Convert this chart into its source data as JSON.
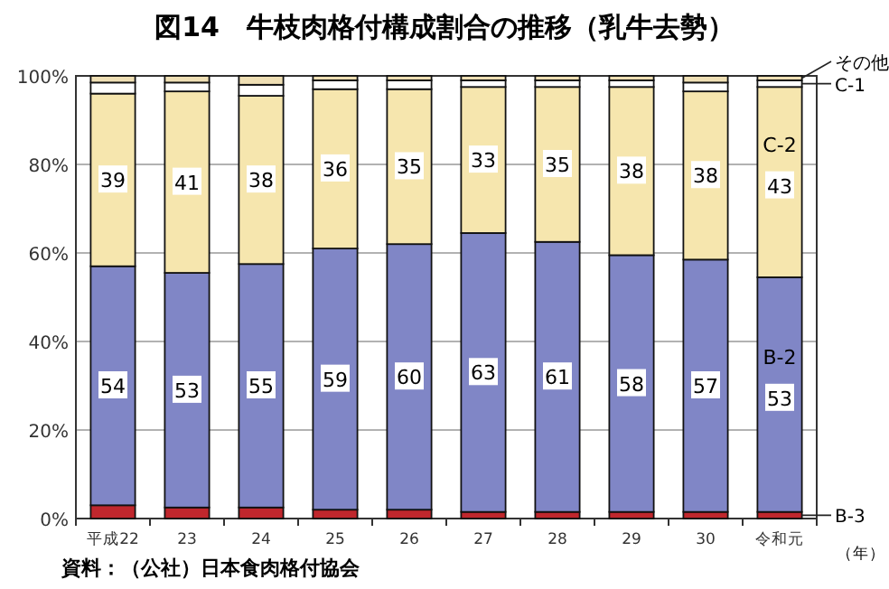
{
  "chart_data": {
    "type": "bar",
    "stacked": true,
    "title": "図14　牛枝肉格付構成割合の推移（乳牛去勢）",
    "xlabel": "（年）",
    "annotations": [
      "資料：（公社）日本食肉格付協会"
    ],
    "categories": [
      "平成22",
      "23",
      "24",
      "25",
      "26",
      "27",
      "28",
      "29",
      "30",
      "令和元"
    ],
    "series": [
      {
        "name": "B-3",
        "color": "#c0272d",
        "values": [
          3,
          2.5,
          2.5,
          2,
          2,
          1.5,
          1.5,
          1.5,
          1.5,
          1.5
        ]
      },
      {
        "name": "B-2",
        "color": "#8086c6",
        "values": [
          54,
          53,
          55,
          59,
          60,
          63,
          61,
          58,
          57,
          53
        ],
        "value_labels": [
          "54",
          "53",
          "55",
          "59",
          "60",
          "63",
          "61",
          "58",
          "57",
          "53"
        ]
      },
      {
        "name": "C-2",
        "color": "#f6e6ae",
        "values": [
          39,
          41,
          38,
          36,
          35,
          33,
          35,
          38,
          38,
          43
        ],
        "value_labels": [
          "39",
          "41",
          "38",
          "36",
          "35",
          "33",
          "35",
          "38",
          "38",
          "43"
        ]
      },
      {
        "name": "C-1",
        "color": "#ffffff",
        "values": [
          2.5,
          2,
          2.5,
          2,
          2,
          1.5,
          1.5,
          1.5,
          2,
          1.5
        ]
      },
      {
        "name": "その他",
        "color": "#efdfb4",
        "values": [
          1.5,
          1.5,
          2,
          1,
          1,
          1,
          1,
          1,
          1.5,
          1
        ]
      }
    ],
    "ylim": [
      0,
      100
    ],
    "yticks": [
      {
        "value": 0,
        "label": "0%"
      },
      {
        "value": 20,
        "label": "20%"
      },
      {
        "value": 40,
        "label": "40%"
      },
      {
        "value": 60,
        "label": "60%"
      },
      {
        "value": 80,
        "label": "80%"
      },
      {
        "value": 100,
        "label": "100%"
      }
    ],
    "grid": "y"
  }
}
